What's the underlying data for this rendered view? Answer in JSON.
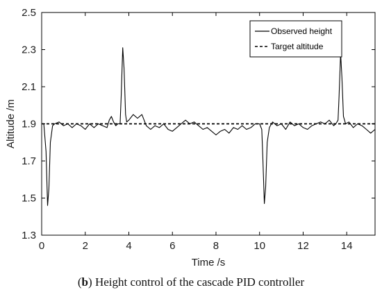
{
  "caption": {
    "label": "b",
    "text": " Height control of the cascade PID controller"
  },
  "chart_data": {
    "type": "line",
    "title": "",
    "xlabel": "Time /s",
    "ylabel": "Altitude /m",
    "xlim": [
      0,
      15.3
    ],
    "ylim": [
      1.3,
      2.5
    ],
    "xticks": [
      0,
      2,
      4,
      6,
      8,
      10,
      12,
      14
    ],
    "yticks": [
      1.3,
      1.5,
      1.7,
      1.9,
      2.1,
      2.3,
      2.5
    ],
    "ytick_labels": [
      "1.3",
      "1.5",
      "1.7",
      "1.9",
      "2.1",
      "2.3",
      "2.5"
    ],
    "grid": false,
    "legend_position": "top-right",
    "colors": {
      "observed": "#000000",
      "target": "#000000"
    },
    "series": [
      {
        "name": "Observed height",
        "style": "solid",
        "x": [
          0,
          0.1,
          0.2,
          0.27,
          0.33,
          0.4,
          0.5,
          0.6,
          0.8,
          1.0,
          1.2,
          1.4,
          1.6,
          1.8,
          2.0,
          2.2,
          2.4,
          2.6,
          2.8,
          3.0,
          3.1,
          3.2,
          3.3,
          3.4,
          3.5,
          3.6,
          3.65,
          3.72,
          3.78,
          3.85,
          3.9,
          4.0,
          4.2,
          4.4,
          4.6,
          4.8,
          5.0,
          5.2,
          5.4,
          5.6,
          5.8,
          6.0,
          6.2,
          6.4,
          6.6,
          6.8,
          7.0,
          7.2,
          7.4,
          7.6,
          7.8,
          8.0,
          8.2,
          8.4,
          8.6,
          8.8,
          9.0,
          9.2,
          9.4,
          9.6,
          9.8,
          10.0,
          10.1,
          10.15,
          10.22,
          10.28,
          10.35,
          10.45,
          10.6,
          10.8,
          11.0,
          11.2,
          11.4,
          11.6,
          11.8,
          12.0,
          12.2,
          12.4,
          12.6,
          12.8,
          13.0,
          13.2,
          13.4,
          13.5,
          13.6,
          13.65,
          13.72,
          13.78,
          13.85,
          13.95,
          14.1,
          14.3,
          14.5,
          14.7,
          14.9,
          15.1,
          15.3
        ],
        "y": [
          1.9,
          1.9,
          1.75,
          1.46,
          1.55,
          1.8,
          1.89,
          1.9,
          1.91,
          1.89,
          1.9,
          1.88,
          1.9,
          1.89,
          1.87,
          1.9,
          1.88,
          1.9,
          1.89,
          1.88,
          1.92,
          1.94,
          1.91,
          1.89,
          1.9,
          1.9,
          2.05,
          2.31,
          2.2,
          1.95,
          1.91,
          1.92,
          1.95,
          1.93,
          1.95,
          1.89,
          1.87,
          1.89,
          1.88,
          1.9,
          1.87,
          1.86,
          1.88,
          1.9,
          1.92,
          1.9,
          1.91,
          1.89,
          1.87,
          1.88,
          1.86,
          1.84,
          1.86,
          1.87,
          1.85,
          1.88,
          1.87,
          1.89,
          1.87,
          1.88,
          1.9,
          1.9,
          1.87,
          1.72,
          1.47,
          1.56,
          1.8,
          1.88,
          1.91,
          1.89,
          1.9,
          1.87,
          1.91,
          1.89,
          1.9,
          1.88,
          1.87,
          1.89,
          1.9,
          1.91,
          1.9,
          1.92,
          1.89,
          1.9,
          1.92,
          2.05,
          2.28,
          2.15,
          1.94,
          1.9,
          1.91,
          1.88,
          1.9,
          1.89,
          1.87,
          1.85,
          1.87
        ]
      },
      {
        "name": "Target altitude",
        "style": "dashed",
        "x": [
          0,
          15.3
        ],
        "y": [
          1.9,
          1.9
        ]
      }
    ]
  }
}
